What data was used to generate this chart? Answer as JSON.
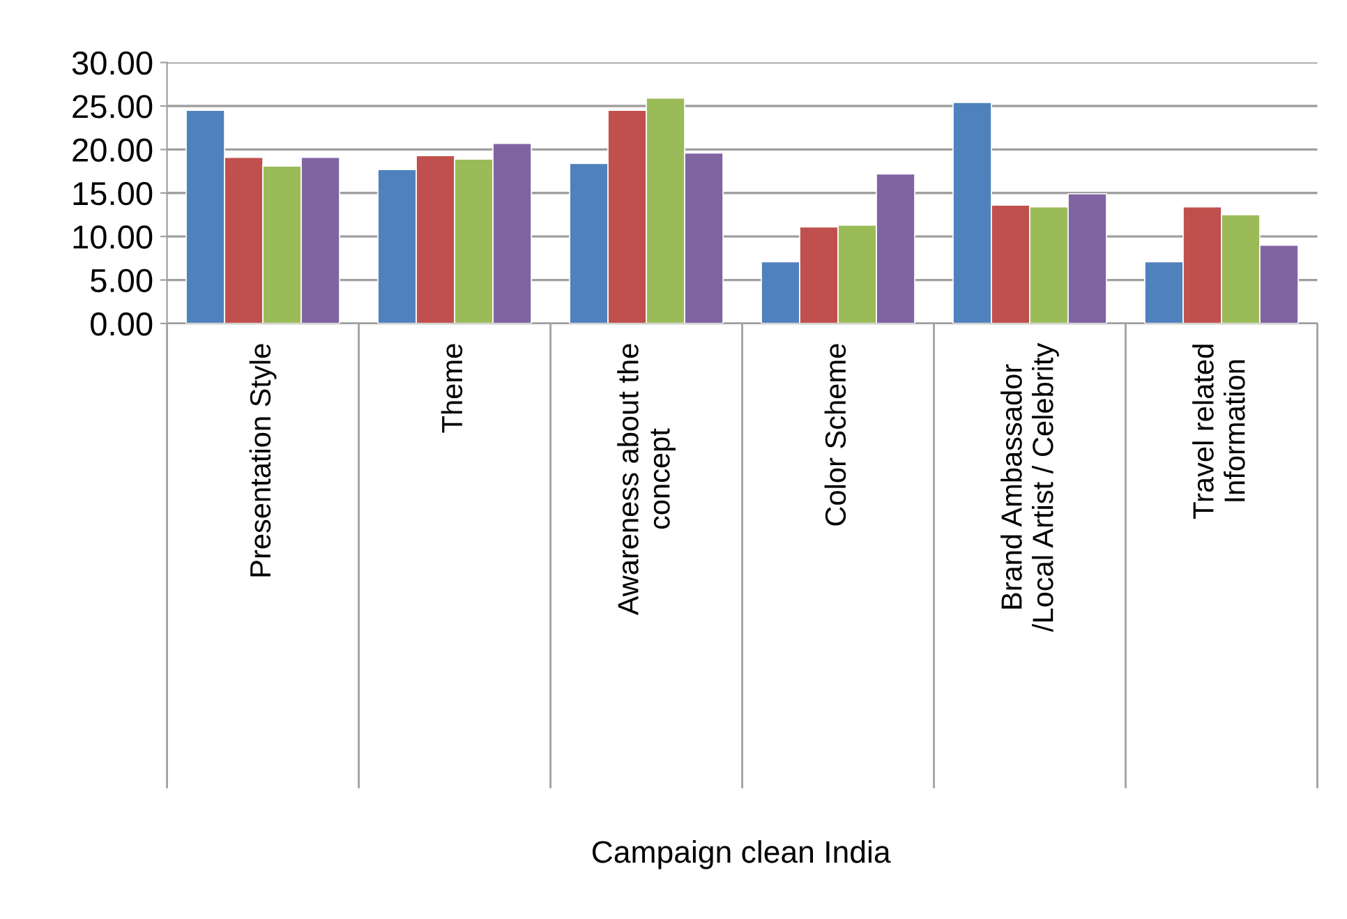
{
  "chart_data": {
    "type": "bar",
    "annotations": [
      "Campaign clean India"
    ],
    "categories": [
      "Presentation Style",
      "Theme",
      "Awareness about the\nconcept",
      "Color Scheme",
      "Brand Ambassador\n/Local Artist / Celebrity",
      "Travel related\nInformation"
    ],
    "series": [
      {
        "color": "#4f81bd",
        "values": [
          24.5,
          17.7,
          18.4,
          7.1,
          25.4,
          7.1
        ]
      },
      {
        "color": "#c0504d",
        "values": [
          19.1,
          19.3,
          24.5,
          11.1,
          13.6,
          13.4
        ]
      },
      {
        "color": "#9bbb59",
        "values": [
          18.1,
          18.9,
          25.9,
          11.3,
          13.4,
          12.5
        ]
      },
      {
        "color": "#8064a2",
        "values": [
          19.1,
          20.7,
          19.6,
          17.2,
          14.9,
          9.0
        ]
      }
    ],
    "ylim": [
      0,
      30
    ],
    "yticks": [
      {
        "value": 0,
        "label": "0.00"
      },
      {
        "value": 5,
        "label": "5.00"
      },
      {
        "value": 10,
        "label": "10.00"
      },
      {
        "value": 15,
        "label": "15.00"
      },
      {
        "value": 20,
        "label": "20.00"
      },
      {
        "value": 25,
        "label": "25.00"
      },
      {
        "value": 30,
        "label": "30.00"
      }
    ],
    "grid": "y",
    "legend": false
  }
}
